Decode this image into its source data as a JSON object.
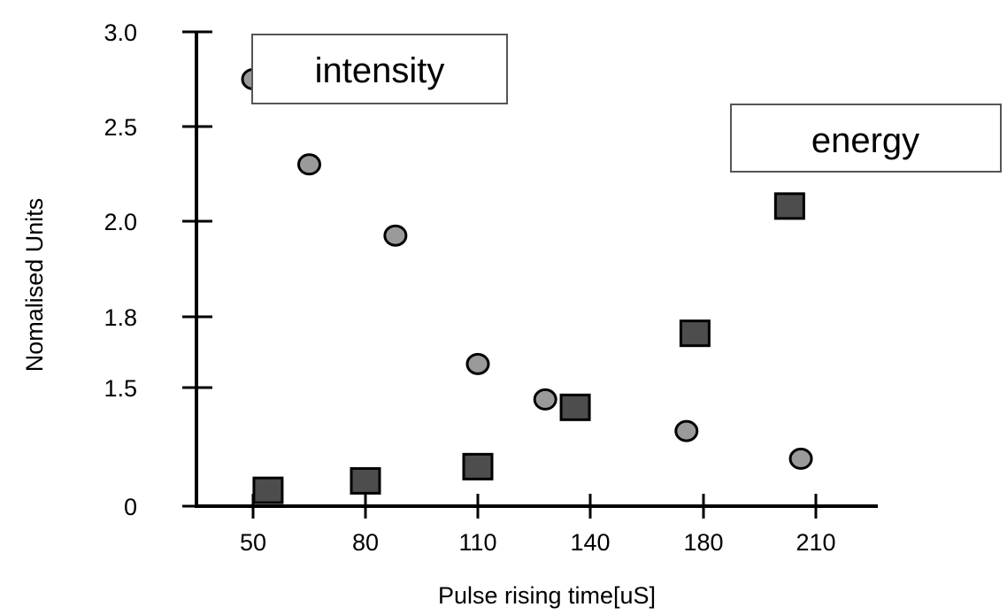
{
  "chart_data": {
    "type": "scatter",
    "xlabel": "Pulse rising time[uS]",
    "ylabel": "Nomalised Units",
    "x_ticks": [
      "50",
      "80",
      "110",
      "140",
      "180",
      "210"
    ],
    "y_ticks": [
      "0",
      "1.5",
      "1.8",
      "2.0",
      "2.5",
      "3.0"
    ],
    "series": [
      {
        "name": "intensity",
        "marker": "circle",
        "color": "#9a9a9a",
        "points": [
          {
            "x": 50,
            "y": 2.75
          },
          {
            "x": 65,
            "y": 2.3
          },
          {
            "x": 88,
            "y": 1.97
          },
          {
            "x": 110,
            "y": 1.6
          },
          {
            "x": 128,
            "y": 1.35
          },
          {
            "x": 174,
            "y": 0.95
          },
          {
            "x": 206,
            "y": 0.6
          }
        ]
      },
      {
        "name": "energy",
        "marker": "square",
        "color": "#4d4d4d",
        "points": [
          {
            "x": 54,
            "y": 0.2
          },
          {
            "x": 80,
            "y": 0.32
          },
          {
            "x": 110,
            "y": 0.5
          },
          {
            "x": 136,
            "y": 1.25
          },
          {
            "x": 177,
            "y": 1.73
          },
          {
            "x": 203,
            "y": 2.08
          }
        ]
      }
    ]
  }
}
